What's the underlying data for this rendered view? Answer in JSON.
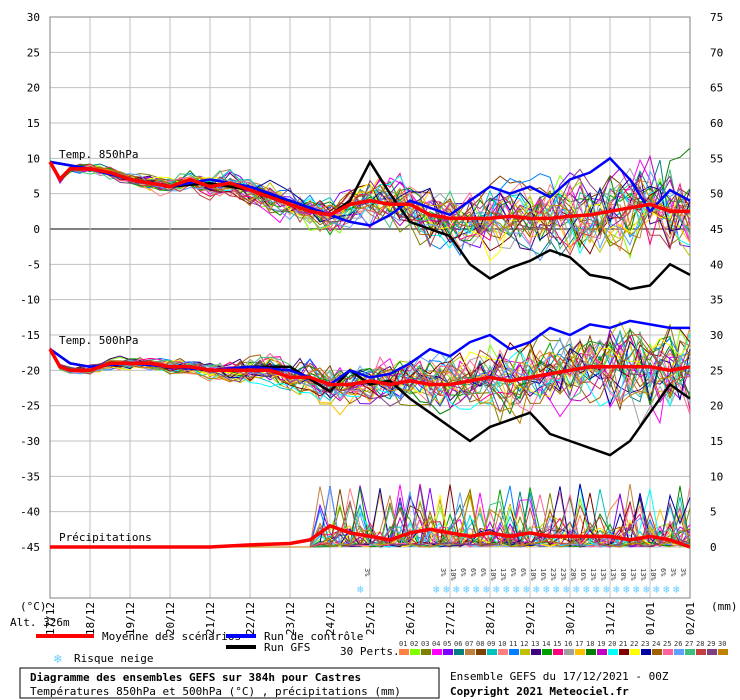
{
  "chart_data": {
    "type": "line",
    "title": "Diagramme des ensembles GEFS sur 384h pour Castres",
    "subtitle": "Températures 850hPa et 500hPa (°C) , précipitations (mm)",
    "run_info": "Ensemble GEFS du 17/12/2021 - 00Z",
    "copyright": "Copyright 2021 Meteociel.fr",
    "altitude": "Alt. 326m",
    "left_axis_unit": "(°C)",
    "right_axis_unit": "(mm)",
    "left_axis": {
      "ticks": [
        30,
        25,
        20,
        15,
        10,
        5,
        0,
        -5,
        -10,
        -15,
        -20,
        -25,
        -30,
        -35,
        -40,
        -45
      ],
      "ylim": [
        -45,
        30
      ]
    },
    "right_axis": {
      "ticks": [
        75,
        70,
        65,
        60,
        55,
        50,
        45,
        40,
        35,
        30,
        25,
        20,
        15,
        10,
        5,
        0
      ]
    },
    "x_labels": [
      "17/12",
      "18/12",
      "19/12",
      "20/12",
      "21/12",
      "22/12",
      "23/12",
      "24/12",
      "25/12",
      "26/12",
      "27/12",
      "28/12",
      "29/12",
      "30/12",
      "31/12",
      "01/01",
      "02/01"
    ],
    "panel_labels": {
      "t850": "Temp. 850hPa",
      "t500": "Temp. 500hPa",
      "precip": "Précipitations"
    },
    "series_means": {
      "t850_mean": {
        "x": [
          0,
          0.25,
          0.5,
          1,
          1.5,
          2,
          2.5,
          3,
          3.5,
          4,
          4.5,
          5,
          5.5,
          6,
          6.5,
          7,
          7.5,
          8,
          8.5,
          9,
          9.5,
          10,
          10.5,
          11,
          11.5,
          12,
          12.5,
          13,
          13.5,
          14,
          14.5,
          15,
          15.5,
          16
        ],
        "values": [
          9.5,
          7,
          8.5,
          8.5,
          8,
          7,
          6.5,
          6,
          7,
          6,
          6.5,
          5.5,
          4.5,
          3.5,
          2.5,
          2,
          3.5,
          4,
          3.5,
          3.5,
          2,
          1.5,
          1.5,
          1.5,
          1.8,
          1.5,
          1.5,
          1.8,
          2,
          2.5,
          3,
          3.5,
          2.5,
          2.5
        ]
      },
      "t500_mean": {
        "x": [
          0,
          0.25,
          0.5,
          1,
          1.5,
          2,
          2.5,
          3,
          3.5,
          4,
          4.5,
          5,
          5.5,
          6,
          6.5,
          7,
          7.5,
          8,
          8.5,
          9,
          9.5,
          10,
          10.5,
          11,
          11.5,
          12,
          12.5,
          13,
          13.5,
          14,
          14.5,
          15,
          15.5,
          16
        ],
        "values": [
          -17,
          -19.5,
          -20,
          -20,
          -19,
          -19,
          -19,
          -19.5,
          -19.5,
          -20,
          -20,
          -20,
          -20,
          -21,
          -21,
          -22,
          -22,
          -21.5,
          -22,
          -21.5,
          -22,
          -22,
          -21.5,
          -21,
          -21.5,
          -21,
          -20.5,
          -20,
          -19.5,
          -19.5,
          -19.5,
          -19.5,
          -20,
          -19.5
        ]
      },
      "precip_mean": {
        "x": [
          0,
          1,
          2,
          3,
          4,
          5,
          6,
          6.5,
          7,
          7.5,
          8,
          8.5,
          9,
          9.5,
          10,
          10.5,
          11,
          11.5,
          12,
          12.5,
          13,
          13.5,
          14,
          14.5,
          15,
          15.5,
          16
        ],
        "values": [
          0,
          0,
          0,
          0,
          0,
          0.3,
          0.5,
          1,
          3,
          2,
          1.5,
          1,
          2,
          2.5,
          2,
          1.5,
          2,
          1.5,
          2,
          1.5,
          1.5,
          1.5,
          1.5,
          1,
          1.5,
          1,
          0
        ]
      },
      "t850_gfs": {
        "x": [
          0,
          0.5,
          1,
          2,
          3,
          4,
          5,
          6,
          7,
          7.5,
          8,
          8.5,
          9,
          9.5,
          10,
          10.5,
          11,
          11.5,
          12,
          12.5,
          13,
          13.5,
          14,
          14.5,
          15,
          15.5,
          16
        ],
        "values": [
          9.5,
          9,
          8.5,
          7,
          6,
          6.5,
          5.5,
          4,
          2,
          4,
          9.5,
          5,
          1,
          0,
          -1,
          -5,
          -7,
          -5.5,
          -4.5,
          -3,
          -4,
          -6.5,
          -7,
          -8.5,
          -8,
          -5,
          -6.5
        ]
      },
      "t500_gfs": {
        "x": [
          0,
          0.5,
          1,
          2,
          3,
          4,
          5,
          6,
          7,
          7.5,
          8,
          8.5,
          9,
          9.5,
          10,
          10.5,
          11,
          11.5,
          12,
          12.5,
          13,
          13.5,
          14,
          14.5,
          15,
          15.5,
          16
        ],
        "values": [
          -17,
          -19,
          -19.5,
          -19,
          -19.5,
          -20,
          -19.5,
          -19.5,
          -23,
          -20,
          -22,
          -21.5,
          -24,
          -26,
          -28,
          -30,
          -28,
          -27,
          -26,
          -29,
          -30,
          -31,
          -32,
          -30,
          -26,
          -22,
          -24
        ]
      },
      "t850_control": {
        "x": [
          0,
          0.5,
          1,
          2,
          3,
          4,
          5,
          6,
          7,
          7.5,
          8,
          8.5,
          9,
          9.5,
          10,
          10.5,
          11,
          11.5,
          12,
          12.5,
          13,
          13.5,
          14,
          14.5,
          15,
          15.5,
          16
        ],
        "values": [
          9.5,
          9,
          8.5,
          7,
          6,
          7,
          6,
          4,
          2,
          1,
          0.5,
          2,
          4,
          3,
          2,
          4,
          6,
          5,
          6,
          4.5,
          7,
          8,
          10,
          7,
          2.5,
          5.5,
          4
        ]
      },
      "t500_control": {
        "x": [
          0,
          0.5,
          1,
          2,
          3,
          4,
          5,
          6,
          7,
          7.5,
          8,
          8.5,
          9,
          9.5,
          10,
          10.5,
          11,
          11.5,
          12,
          12.5,
          13,
          13.5,
          14,
          14.5,
          15,
          15.5,
          16
        ],
        "values": [
          -17,
          -19,
          -19.5,
          -19,
          -19.5,
          -20,
          -19.5,
          -20,
          -22,
          -20,
          -21,
          -20.5,
          -19,
          -17,
          -18,
          -16,
          -15,
          -17,
          -16,
          -14,
          -15,
          -13.5,
          -14,
          -13,
          -13.5,
          -14,
          -14
        ]
      }
    },
    "snow_risk_percentages": [
      {
        "x": 7.8,
        "label": "3%"
      },
      {
        "x": 9.7,
        "label": "3%"
      },
      {
        "x": 9.95,
        "label": "10%"
      },
      {
        "x": 10.2,
        "label": "6%"
      },
      {
        "x": 10.45,
        "label": "6%"
      },
      {
        "x": 10.7,
        "label": "6%"
      },
      {
        "x": 10.95,
        "label": "10%"
      },
      {
        "x": 11.2,
        "label": "13%"
      },
      {
        "x": 11.45,
        "label": "6%"
      },
      {
        "x": 11.7,
        "label": "6%"
      },
      {
        "x": 11.95,
        "label": "10%"
      },
      {
        "x": 12.2,
        "label": "16%"
      },
      {
        "x": 12.45,
        "label": "23%"
      },
      {
        "x": 12.7,
        "label": "23%"
      },
      {
        "x": 12.95,
        "label": "20%"
      },
      {
        "x": 13.2,
        "label": "16%"
      },
      {
        "x": 13.45,
        "label": "13%"
      },
      {
        "x": 13.7,
        "label": "13%"
      },
      {
        "x": 13.95,
        "label": "13%"
      },
      {
        "x": 14.2,
        "label": "10%"
      },
      {
        "x": 14.45,
        "label": "13%"
      },
      {
        "x": 14.7,
        "label": "13%"
      },
      {
        "x": 14.95,
        "label": "10%"
      },
      {
        "x": 15.2,
        "label": "6%"
      },
      {
        "x": 15.45,
        "label": "3%"
      },
      {
        "x": 15.7,
        "label": "3%"
      }
    ],
    "legend": {
      "mean": "Moyenne des scénarios",
      "control": "Run de contrôle",
      "gfs": "Run GFS",
      "snow": "Risque neige",
      "perts_label": "30 Perts.",
      "member_numbers": [
        "01",
        "02",
        "03",
        "04",
        "05",
        "06",
        "07",
        "08",
        "09",
        "10",
        "11",
        "12",
        "13",
        "14",
        "15",
        "16",
        "17",
        "18",
        "19",
        "20",
        "21",
        "22",
        "23",
        "24",
        "25",
        "26",
        "27",
        "28",
        "29",
        "30"
      ]
    },
    "colors": {
      "mean": "#ff0000",
      "control": "#0000ff",
      "gfs": "#000000",
      "grid": "#c0c0c0",
      "zero": "#808080",
      "snow": "#66ccff",
      "members": [
        "#ff8040",
        "#80ff00",
        "#808000",
        "#ff00ff",
        "#8000ff",
        "#008080",
        "#c08040",
        "#804000",
        "#00c0c0",
        "#ff8080",
        "#0080ff",
        "#c0c000",
        "#400080",
        "#00a000",
        "#ff0080",
        "#a0a0a0",
        "#ffc000",
        "#008000",
        "#c000c0",
        "#00ffff",
        "#800000",
        "#ffff00",
        "#0000a0",
        "#a06000",
        "#ff60a0",
        "#60a0ff",
        "#40c080",
        "#c04040",
        "#804080",
        "#c08000"
      ]
    }
  }
}
